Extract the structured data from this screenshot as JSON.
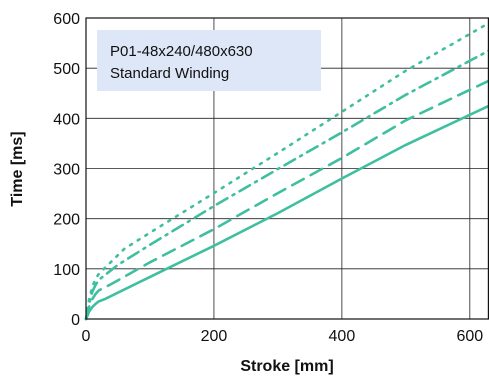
{
  "chart_data": {
    "type": "line",
    "title": "",
    "xlabel": "Stroke [mm]",
    "ylabel": "Time [ms]",
    "xlim": [
      0,
      630
    ],
    "ylim": [
      0,
      600
    ],
    "xticks": [
      "0",
      "200",
      "400",
      "600"
    ],
    "yticks": [
      "0",
      "100",
      "200",
      "300",
      "400",
      "500",
      "600"
    ],
    "grid": true,
    "annotation": {
      "lines": [
        "P01-48x240/480x630",
        "Standard Winding"
      ],
      "position": "top-left",
      "background": "#dde7f7"
    },
    "line_color": "#3fbf9f",
    "series": [
      {
        "style": "solid",
        "x": [
          0,
          5,
          10,
          15,
          20,
          30,
          100,
          200,
          300,
          400,
          500,
          630
        ],
        "y": [
          0,
          15,
          24,
          30,
          35,
          40,
          84,
          146,
          211,
          280,
          347,
          425
        ]
      },
      {
        "style": "dashed",
        "x": [
          0,
          5,
          10,
          15,
          20,
          40,
          100,
          200,
          300,
          400,
          500,
          630
        ],
        "y": [
          0,
          25,
          40,
          50,
          57,
          70,
          113,
          179,
          251,
          321,
          396,
          475
        ]
      },
      {
        "style": "dash-dot",
        "x": [
          0,
          5,
          10,
          15,
          20,
          50,
          100,
          200,
          300,
          400,
          500,
          630
        ],
        "y": [
          0,
          30,
          55,
          68,
          78,
          108,
          148,
          225,
          299,
          372,
          447,
          535
        ]
      },
      {
        "style": "dotted",
        "x": [
          0,
          5,
          10,
          15,
          20,
          60,
          100,
          200,
          300,
          400,
          500,
          630
        ],
        "y": [
          0,
          40,
          65,
          80,
          90,
          140,
          172,
          251,
          331,
          413,
          495,
          590
        ]
      }
    ]
  }
}
